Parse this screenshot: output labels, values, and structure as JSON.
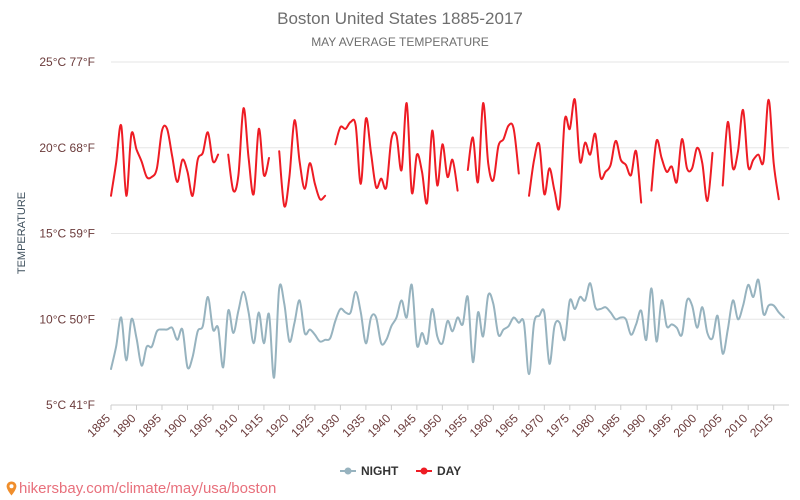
{
  "colors": {
    "day": "#ee1c24",
    "night": "#97b3bf",
    "title": "#6e6e6e",
    "axis_text": "#6b3b3b",
    "grid": "#e6e6e6"
  },
  "footer": {
    "url": "hikersbay.com/climate/may/usa/boston",
    "icon": "location-pin-icon"
  },
  "chart_data": {
    "type": "line",
    "title": "Boston United States 1885-2017",
    "subtitle": "MAY AVERAGE TEMPERATURE",
    "ylabel": "TEMPERATURE",
    "xlabel": "",
    "ylim": [
      5,
      25
    ],
    "xlim": [
      1885,
      2018
    ],
    "y_ticks": [
      {
        "value": 25,
        "label": "25°C 77°F"
      },
      {
        "value": 20,
        "label": "20°C 68°F"
      },
      {
        "value": 15,
        "label": "15°C 59°F"
      },
      {
        "value": 10,
        "label": "10°C 50°F"
      },
      {
        "value": 5,
        "label": "5°C 41°F"
      }
    ],
    "x_ticks": [
      1885,
      1890,
      1895,
      1900,
      1905,
      1910,
      1915,
      1920,
      1925,
      1930,
      1935,
      1940,
      1945,
      1950,
      1955,
      1960,
      1965,
      1970,
      1975,
      1980,
      1985,
      1990,
      1995,
      2000,
      2005,
      2010,
      2015
    ],
    "grid": true,
    "legend_position": "bottom-center",
    "series": [
      {
        "name": "NIGHT",
        "color": "#97b3bf",
        "points": [
          [
            1885,
            7.1
          ],
          [
            1886,
            8.4
          ],
          [
            1887,
            10.1
          ],
          [
            1888,
            7.6
          ],
          [
            1889,
            10.0
          ],
          [
            1890,
            8.9
          ],
          [
            1891,
            7.3
          ],
          [
            1892,
            8.4
          ],
          [
            1893,
            8.4
          ],
          [
            1894,
            9.3
          ],
          [
            1895,
            9.4
          ],
          [
            1896,
            9.4
          ],
          [
            1897,
            9.5
          ],
          [
            1898,
            8.8
          ],
          [
            1899,
            9.4
          ],
          [
            1900,
            7.2
          ],
          [
            1901,
            7.8
          ],
          [
            1902,
            9.3
          ],
          [
            1903,
            9.6
          ],
          [
            1904,
            11.3
          ],
          [
            1905,
            9.4
          ],
          [
            1906,
            9.5
          ],
          [
            1907,
            7.2
          ],
          [
            1908,
            10.5
          ],
          [
            1909,
            9.2
          ],
          [
            1910,
            10.5
          ],
          [
            1911,
            11.6
          ],
          [
            1912,
            10.4
          ],
          [
            1913,
            8.6
          ],
          [
            1914,
            10.4
          ],
          [
            1915,
            8.6
          ],
          [
            1916,
            10.3
          ],
          [
            1917,
            6.6
          ],
          [
            1918,
            11.8
          ],
          [
            1919,
            10.9
          ],
          [
            1920,
            8.7
          ],
          [
            1921,
            9.8
          ],
          [
            1922,
            11.1
          ],
          [
            1923,
            9.2
          ],
          [
            1924,
            9.4
          ],
          [
            1925,
            9.1
          ],
          [
            1926,
            8.7
          ],
          [
            1927,
            8.8
          ],
          [
            1928,
            8.9
          ],
          [
            1929,
            9.9
          ],
          [
            1930,
            10.6
          ],
          [
            1931,
            10.4
          ],
          [
            1932,
            10.4
          ],
          [
            1933,
            11.6
          ],
          [
            1934,
            10.4
          ],
          [
            1935,
            8.6
          ],
          [
            1936,
            10.1
          ],
          [
            1937,
            10.1
          ],
          [
            1938,
            8.6
          ],
          [
            1939,
            8.8
          ],
          [
            1940,
            9.6
          ],
          [
            1941,
            10.1
          ],
          [
            1942,
            11.1
          ],
          [
            1943,
            10.1
          ],
          [
            1944,
            12.0
          ],
          [
            1945,
            8.5
          ],
          [
            1946,
            9.2
          ],
          [
            1947,
            8.6
          ],
          [
            1948,
            10.6
          ],
          [
            1949,
            9.0
          ],
          [
            1950,
            8.6
          ],
          [
            1951,
            9.9
          ],
          [
            1952,
            9.3
          ],
          [
            1953,
            10.1
          ],
          [
            1954,
            9.7
          ],
          [
            1955,
            11.3
          ],
          [
            1956,
            7.5
          ],
          [
            1957,
            10.4
          ],
          [
            1958,
            9.0
          ],
          [
            1959,
            11.4
          ],
          [
            1960,
            10.9
          ],
          [
            1961,
            9.1
          ],
          [
            1962,
            9.4
          ],
          [
            1963,
            9.6
          ],
          [
            1964,
            10.1
          ],
          [
            1965,
            9.8
          ],
          [
            1966,
            9.8
          ],
          [
            1967,
            6.8
          ],
          [
            1968,
            9.8
          ],
          [
            1969,
            10.2
          ],
          [
            1970,
            10.4
          ],
          [
            1971,
            7.4
          ],
          [
            1972,
            9.6
          ],
          [
            1973,
            9.8
          ],
          [
            1974,
            8.8
          ],
          [
            1975,
            11.1
          ],
          [
            1976,
            10.6
          ],
          [
            1977,
            11.3
          ],
          [
            1978,
            11.1
          ],
          [
            1979,
            12.1
          ],
          [
            1980,
            10.7
          ],
          [
            1981,
            10.6
          ],
          [
            1982,
            10.7
          ],
          [
            1983,
            10.4
          ],
          [
            1984,
            10.0
          ],
          [
            1985,
            10.1
          ],
          [
            1986,
            10.0
          ],
          [
            1987,
            9.1
          ],
          [
            1988,
            9.7
          ],
          [
            1989,
            10.5
          ],
          [
            1990,
            8.8
          ],
          [
            1991,
            11.8
          ],
          [
            1992,
            8.7
          ],
          [
            1993,
            11.1
          ],
          [
            1994,
            9.6
          ],
          [
            1995,
            9.7
          ],
          [
            1996,
            9.5
          ],
          [
            1997,
            9.1
          ],
          [
            1998,
            11.1
          ],
          [
            1999,
            10.8
          ],
          [
            2000,
            9.5
          ],
          [
            2001,
            10.7
          ],
          [
            2002,
            9.2
          ],
          [
            2003,
            8.9
          ],
          [
            2004,
            10.2
          ],
          [
            2005,
            8.0
          ],
          [
            2006,
            9.4
          ],
          [
            2007,
            11.1
          ],
          [
            2008,
            10.0
          ],
          [
            2009,
            10.8
          ],
          [
            2010,
            12.0
          ],
          [
            2011,
            11.3
          ],
          [
            2012,
            12.3
          ],
          [
            2013,
            10.3
          ],
          [
            2014,
            10.8
          ],
          [
            2015,
            10.8
          ],
          [
            2016,
            10.4
          ],
          [
            2017,
            10.1
          ]
        ]
      },
      {
        "name": "DAY",
        "color": "#ee1c24",
        "points": [
          [
            1885,
            17.2
          ],
          [
            1886,
            19.1
          ],
          [
            1887,
            21.3
          ],
          [
            1888,
            17.2
          ],
          [
            1889,
            20.8
          ],
          [
            1890,
            19.9
          ],
          [
            1891,
            19.2
          ],
          [
            1892,
            18.3
          ],
          [
            1893,
            18.3
          ],
          [
            1894,
            18.8
          ],
          [
            1895,
            21.0
          ],
          [
            1896,
            21.1
          ],
          [
            1897,
            19.5
          ],
          [
            1898,
            18.0
          ],
          [
            1899,
            19.3
          ],
          [
            1900,
            18.6
          ],
          [
            1901,
            17.2
          ],
          [
            1902,
            19.3
          ],
          [
            1903,
            19.7
          ],
          [
            1904,
            20.9
          ],
          [
            1905,
            19.2
          ],
          [
            1906,
            19.6
          ],
          [
            1907,
            null
          ],
          [
            1908,
            19.6
          ],
          [
            1909,
            17.5
          ],
          [
            1910,
            18.4
          ],
          [
            1911,
            22.3
          ],
          [
            1912,
            19.4
          ],
          [
            1913,
            17.3
          ],
          [
            1914,
            21.1
          ],
          [
            1915,
            18.4
          ],
          [
            1916,
            19.4
          ],
          [
            1917,
            null
          ],
          [
            1918,
            19.8
          ],
          [
            1919,
            16.6
          ],
          [
            1920,
            18.3
          ],
          [
            1921,
            21.6
          ],
          [
            1922,
            19.2
          ],
          [
            1923,
            17.6
          ],
          [
            1924,
            19.1
          ],
          [
            1925,
            17.9
          ],
          [
            1926,
            17.0
          ],
          [
            1927,
            17.2
          ],
          [
            1928,
            null
          ],
          [
            1929,
            20.2
          ],
          [
            1930,
            21.2
          ],
          [
            1931,
            21.1
          ],
          [
            1932,
            21.5
          ],
          [
            1933,
            21.3
          ],
          [
            1934,
            17.9
          ],
          [
            1935,
            21.7
          ],
          [
            1936,
            19.7
          ],
          [
            1937,
            17.7
          ],
          [
            1938,
            18.2
          ],
          [
            1939,
            17.7
          ],
          [
            1940,
            20.5
          ],
          [
            1941,
            20.7
          ],
          [
            1942,
            18.7
          ],
          [
            1943,
            22.6
          ],
          [
            1944,
            17.4
          ],
          [
            1945,
            19.6
          ],
          [
            1946,
            18.6
          ],
          [
            1947,
            16.8
          ],
          [
            1948,
            21.0
          ],
          [
            1949,
            17.8
          ],
          [
            1950,
            20.2
          ],
          [
            1951,
            18.3
          ],
          [
            1952,
            19.3
          ],
          [
            1953,
            17.5
          ],
          [
            1954,
            null
          ],
          [
            1955,
            18.7
          ],
          [
            1956,
            20.6
          ],
          [
            1957,
            18.0
          ],
          [
            1958,
            22.6
          ],
          [
            1959,
            19.1
          ],
          [
            1960,
            18.1
          ],
          [
            1961,
            20.1
          ],
          [
            1962,
            20.5
          ],
          [
            1963,
            21.3
          ],
          [
            1964,
            21.1
          ],
          [
            1965,
            18.5
          ],
          [
            1966,
            null
          ],
          [
            1967,
            17.2
          ],
          [
            1968,
            19.3
          ],
          [
            1969,
            20.2
          ],
          [
            1970,
            17.3
          ],
          [
            1971,
            18.8
          ],
          [
            1972,
            17.5
          ],
          [
            1973,
            16.6
          ],
          [
            1974,
            21.6
          ],
          [
            1975,
            21.1
          ],
          [
            1976,
            22.8
          ],
          [
            1977,
            19.2
          ],
          [
            1978,
            20.3
          ],
          [
            1979,
            19.6
          ],
          [
            1980,
            20.8
          ],
          [
            1981,
            18.3
          ],
          [
            1982,
            18.6
          ],
          [
            1983,
            19.0
          ],
          [
            1984,
            20.4
          ],
          [
            1985,
            19.3
          ],
          [
            1986,
            19.0
          ],
          [
            1987,
            18.4
          ],
          [
            1988,
            19.8
          ],
          [
            1989,
            16.8
          ],
          [
            1990,
            null
          ],
          [
            1991,
            17.5
          ],
          [
            1992,
            20.4
          ],
          [
            1993,
            19.4
          ],
          [
            1994,
            18.6
          ],
          [
            1995,
            18.9
          ],
          [
            1996,
            18.0
          ],
          [
            1997,
            20.5
          ],
          [
            1998,
            18.8
          ],
          [
            1999,
            18.8
          ],
          [
            2000,
            20.0
          ],
          [
            2001,
            19.1
          ],
          [
            2002,
            16.9
          ],
          [
            2003,
            19.7
          ],
          [
            2004,
            null
          ],
          [
            2005,
            17.8
          ],
          [
            2006,
            21.5
          ],
          [
            2007,
            18.8
          ],
          [
            2008,
            19.8
          ],
          [
            2009,
            22.2
          ],
          [
            2010,
            18.9
          ],
          [
            2011,
            19.3
          ],
          [
            2012,
            19.6
          ],
          [
            2013,
            19.2
          ],
          [
            2014,
            22.8
          ],
          [
            2015,
            19.1
          ],
          [
            2016,
            17.0
          ]
        ]
      }
    ]
  }
}
